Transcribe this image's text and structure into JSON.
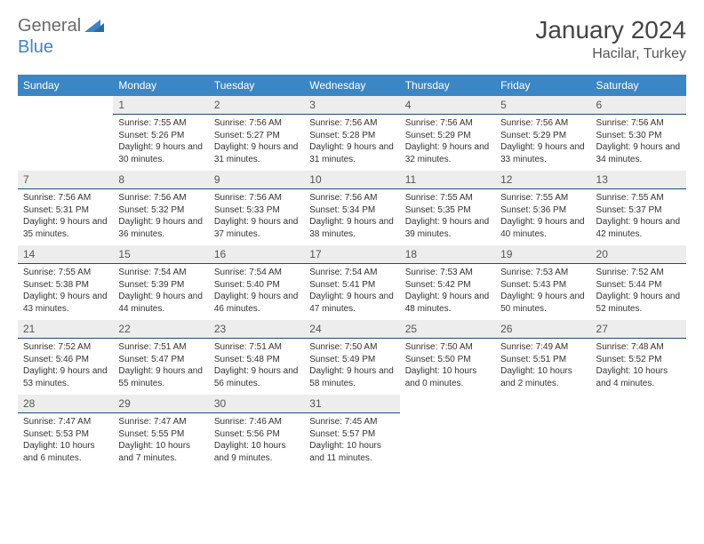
{
  "brand": {
    "part1": "General",
    "part2": "Blue"
  },
  "title": "January 2024",
  "location": "Hacilar, Turkey",
  "colors": {
    "header_bg": "#3b86c5",
    "header_text": "#ffffff",
    "daynum_bg": "#ededed",
    "daynum_border": "#1b4d7a",
    "body_text": "#333333",
    "brand_gray": "#6a6a6a",
    "brand_blue": "#3b86c5"
  },
  "weekdays": [
    "Sunday",
    "Monday",
    "Tuesday",
    "Wednesday",
    "Thursday",
    "Friday",
    "Saturday"
  ],
  "weeks": [
    [
      null,
      {
        "n": "1",
        "sr": "7:55 AM",
        "ss": "5:26 PM",
        "dl": "9 hours and 30 minutes."
      },
      {
        "n": "2",
        "sr": "7:56 AM",
        "ss": "5:27 PM",
        "dl": "9 hours and 31 minutes."
      },
      {
        "n": "3",
        "sr": "7:56 AM",
        "ss": "5:28 PM",
        "dl": "9 hours and 31 minutes."
      },
      {
        "n": "4",
        "sr": "7:56 AM",
        "ss": "5:29 PM",
        "dl": "9 hours and 32 minutes."
      },
      {
        "n": "5",
        "sr": "7:56 AM",
        "ss": "5:29 PM",
        "dl": "9 hours and 33 minutes."
      },
      {
        "n": "6",
        "sr": "7:56 AM",
        "ss": "5:30 PM",
        "dl": "9 hours and 34 minutes."
      }
    ],
    [
      {
        "n": "7",
        "sr": "7:56 AM",
        "ss": "5:31 PM",
        "dl": "9 hours and 35 minutes."
      },
      {
        "n": "8",
        "sr": "7:56 AM",
        "ss": "5:32 PM",
        "dl": "9 hours and 36 minutes."
      },
      {
        "n": "9",
        "sr": "7:56 AM",
        "ss": "5:33 PM",
        "dl": "9 hours and 37 minutes."
      },
      {
        "n": "10",
        "sr": "7:56 AM",
        "ss": "5:34 PM",
        "dl": "9 hours and 38 minutes."
      },
      {
        "n": "11",
        "sr": "7:55 AM",
        "ss": "5:35 PM",
        "dl": "9 hours and 39 minutes."
      },
      {
        "n": "12",
        "sr": "7:55 AM",
        "ss": "5:36 PM",
        "dl": "9 hours and 40 minutes."
      },
      {
        "n": "13",
        "sr": "7:55 AM",
        "ss": "5:37 PM",
        "dl": "9 hours and 42 minutes."
      }
    ],
    [
      {
        "n": "14",
        "sr": "7:55 AM",
        "ss": "5:38 PM",
        "dl": "9 hours and 43 minutes."
      },
      {
        "n": "15",
        "sr": "7:54 AM",
        "ss": "5:39 PM",
        "dl": "9 hours and 44 minutes."
      },
      {
        "n": "16",
        "sr": "7:54 AM",
        "ss": "5:40 PM",
        "dl": "9 hours and 46 minutes."
      },
      {
        "n": "17",
        "sr": "7:54 AM",
        "ss": "5:41 PM",
        "dl": "9 hours and 47 minutes."
      },
      {
        "n": "18",
        "sr": "7:53 AM",
        "ss": "5:42 PM",
        "dl": "9 hours and 48 minutes."
      },
      {
        "n": "19",
        "sr": "7:53 AM",
        "ss": "5:43 PM",
        "dl": "9 hours and 50 minutes."
      },
      {
        "n": "20",
        "sr": "7:52 AM",
        "ss": "5:44 PM",
        "dl": "9 hours and 52 minutes."
      }
    ],
    [
      {
        "n": "21",
        "sr": "7:52 AM",
        "ss": "5:46 PM",
        "dl": "9 hours and 53 minutes."
      },
      {
        "n": "22",
        "sr": "7:51 AM",
        "ss": "5:47 PM",
        "dl": "9 hours and 55 minutes."
      },
      {
        "n": "23",
        "sr": "7:51 AM",
        "ss": "5:48 PM",
        "dl": "9 hours and 56 minutes."
      },
      {
        "n": "24",
        "sr": "7:50 AM",
        "ss": "5:49 PM",
        "dl": "9 hours and 58 minutes."
      },
      {
        "n": "25",
        "sr": "7:50 AM",
        "ss": "5:50 PM",
        "dl": "10 hours and 0 minutes."
      },
      {
        "n": "26",
        "sr": "7:49 AM",
        "ss": "5:51 PM",
        "dl": "10 hours and 2 minutes."
      },
      {
        "n": "27",
        "sr": "7:48 AM",
        "ss": "5:52 PM",
        "dl": "10 hours and 4 minutes."
      }
    ],
    [
      {
        "n": "28",
        "sr": "7:47 AM",
        "ss": "5:53 PM",
        "dl": "10 hours and 6 minutes."
      },
      {
        "n": "29",
        "sr": "7:47 AM",
        "ss": "5:55 PM",
        "dl": "10 hours and 7 minutes."
      },
      {
        "n": "30",
        "sr": "7:46 AM",
        "ss": "5:56 PM",
        "dl": "10 hours and 9 minutes."
      },
      {
        "n": "31",
        "sr": "7:45 AM",
        "ss": "5:57 PM",
        "dl": "10 hours and 11 minutes."
      },
      null,
      null,
      null
    ]
  ]
}
